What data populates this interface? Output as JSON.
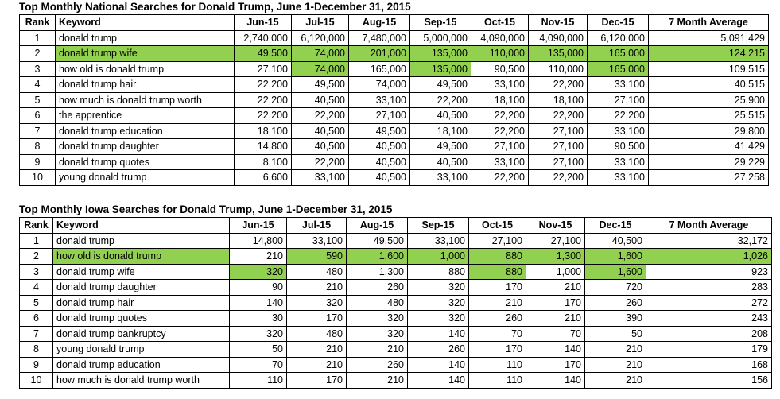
{
  "national": {
    "title": "Top Monthly National Searches for Donald Trump, June 1-December 31, 2015",
    "headers": [
      "Rank",
      "Keyword",
      "Jun-15",
      "Jul-15",
      "Aug-15",
      "Sep-15",
      "Oct-15",
      "Nov-15",
      "Dec-15",
      "7 Month Average"
    ],
    "rows": [
      {
        "cells": [
          "1",
          "donald trump",
          "2,740,000",
          "6,120,000",
          "7,480,000",
          "5,000,000",
          "4,090,000",
          "4,090,000",
          "6,120,000",
          "5,091,429"
        ],
        "highlight": []
      },
      {
        "cells": [
          "2",
          "donald trump wife",
          "49,500",
          "74,000",
          "201,000",
          "135,000",
          "110,000",
          "135,000",
          "165,000",
          "124,215"
        ],
        "highlight": [
          1,
          2,
          3,
          4,
          5,
          6,
          7,
          8,
          9
        ]
      },
      {
        "cells": [
          "3",
          "how old is donald trump",
          "27,100",
          "74,000",
          "165,000",
          "135,000",
          "90,500",
          "110,000",
          "165,000",
          "109,515"
        ],
        "highlight": [
          3,
          5,
          8
        ]
      },
      {
        "cells": [
          "4",
          "donald trump hair",
          "22,200",
          "49,500",
          "74,000",
          "49,500",
          "33,100",
          "22,200",
          "33,100",
          "40,515"
        ],
        "highlight": []
      },
      {
        "cells": [
          "5",
          "how much is donald trump worth",
          "22,200",
          "40,500",
          "33,100",
          "22,200",
          "18,100",
          "18,100",
          "27,100",
          "25,900"
        ],
        "highlight": []
      },
      {
        "cells": [
          "6",
          "the apprentice",
          "22,200",
          "22,200",
          "27,100",
          "40,500",
          "22,200",
          "22,200",
          "22,200",
          "25,515"
        ],
        "highlight": []
      },
      {
        "cells": [
          "7",
          "donald trump education",
          "18,100",
          "40,500",
          "49,500",
          "18,100",
          "22,200",
          "27,100",
          "33,100",
          "29,800"
        ],
        "highlight": []
      },
      {
        "cells": [
          "8",
          "donald trump daughter",
          "14,800",
          "40,500",
          "40,500",
          "49,500",
          "27,100",
          "27,100",
          "90,500",
          "41,429"
        ],
        "highlight": []
      },
      {
        "cells": [
          "9",
          "donald trump quotes",
          "8,100",
          "22,200",
          "40,500",
          "40,500",
          "33,100",
          "27,100",
          "33,100",
          "29,229"
        ],
        "highlight": []
      },
      {
        "cells": [
          "10",
          "young donald trump",
          "6,600",
          "33,100",
          "40,500",
          "33,100",
          "22,200",
          "22,200",
          "33,100",
          "27,258"
        ],
        "highlight": []
      }
    ]
  },
  "iowa": {
    "title": "Top Monthly Iowa Searches for Donald Trump, June 1-December 31, 2015",
    "headers": [
      "Rank",
      "Keyword",
      "Jun-15",
      "Jul-15",
      "Aug-15",
      "Sep-15",
      "Oct-15",
      "Nov-15",
      "Dec-15",
      "7 Month Average"
    ],
    "rows": [
      {
        "cells": [
          "1",
          "donald trump",
          "14,800",
          "33,100",
          "49,500",
          "33,100",
          "27,100",
          "27,100",
          "40,500",
          "32,172"
        ],
        "highlight": []
      },
      {
        "cells": [
          "2",
          "how old is donald trump",
          "210",
          "590",
          "1,600",
          "1,000",
          "880",
          "1,300",
          "1,600",
          "1,026"
        ],
        "highlight": [
          1,
          3,
          4,
          5,
          6,
          7,
          8,
          9
        ]
      },
      {
        "cells": [
          "3",
          "donald trump wife",
          "320",
          "480",
          "1,300",
          "880",
          "880",
          "1,000",
          "1,600",
          "923"
        ],
        "highlight": [
          2,
          6,
          8
        ]
      },
      {
        "cells": [
          "4",
          "donald trump daughter",
          "90",
          "210",
          "260",
          "320",
          "170",
          "210",
          "720",
          "283"
        ],
        "highlight": []
      },
      {
        "cells": [
          "5",
          "donald trump hair",
          "140",
          "320",
          "480",
          "320",
          "210",
          "170",
          "260",
          "272"
        ],
        "highlight": []
      },
      {
        "cells": [
          "6",
          "donald trump quotes",
          "30",
          "170",
          "320",
          "320",
          "260",
          "210",
          "390",
          "243"
        ],
        "highlight": []
      },
      {
        "cells": [
          "7",
          "donald trump bankruptcy",
          "320",
          "480",
          "320",
          "140",
          "70",
          "70",
          "50",
          "208"
        ],
        "highlight": []
      },
      {
        "cells": [
          "8",
          "young donald trump",
          "50",
          "210",
          "210",
          "260",
          "170",
          "140",
          "210",
          "179"
        ],
        "highlight": []
      },
      {
        "cells": [
          "9",
          "donald trump education",
          "70",
          "210",
          "260",
          "140",
          "110",
          "170",
          "210",
          "168"
        ],
        "highlight": []
      },
      {
        "cells": [
          "10",
          "how much is donald trump worth",
          "110",
          "170",
          "210",
          "140",
          "110",
          "140",
          "210",
          "156"
        ],
        "highlight": []
      }
    ]
  },
  "colors": {
    "highlight": "#92d050"
  }
}
